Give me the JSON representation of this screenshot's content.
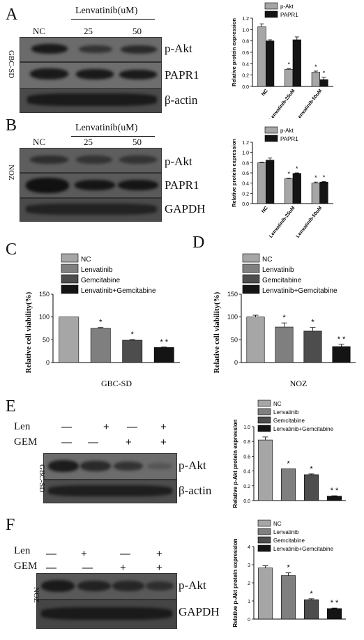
{
  "panels": {
    "A": {
      "letter": "A",
      "treatment_header": "Lenvatinib(uM)",
      "lanes": [
        "NC",
        "25",
        "50"
      ],
      "cell_line": "GBC-SD",
      "proteins": [
        "p-Akt",
        "PAPR1",
        "β-actin"
      ]
    },
    "B": {
      "letter": "B",
      "treatment_header": "Lenvatinib(uM)",
      "lanes": [
        "NC",
        "25",
        "50"
      ],
      "cell_line": "NOZ",
      "proteins": [
        "p-Akt",
        "PAPR1",
        "GAPDH"
      ]
    },
    "C": {
      "letter": "C",
      "cell_line": "GBC-SD"
    },
    "D": {
      "letter": "D",
      "cell_line": "NOZ"
    },
    "E": {
      "letter": "E",
      "row_labels": [
        "Len",
        "GEM"
      ],
      "len_signs": [
        "—",
        "+",
        "—",
        "+"
      ],
      "gem_signs": [
        "—",
        "—",
        "+",
        "+"
      ],
      "cell_line": "GBC-SD",
      "proteins": [
        "p-Akt",
        "β-actin"
      ]
    },
    "F": {
      "letter": "F",
      "row_labels": [
        "Len",
        "GEM"
      ],
      "len_signs": [
        "—",
        "+",
        "—",
        "+"
      ],
      "gem_signs": [
        "—",
        "—",
        "+",
        "+"
      ],
      "cell_line": "NOZ",
      "proteins": [
        "p-Akt",
        "GAPDH"
      ]
    }
  },
  "colors": {
    "light_gray": "#a6a6a6",
    "mid_gray": "#7f7f7f",
    "dark_gray": "#4d4d4d",
    "black": "#141414"
  },
  "chart_data": [
    {
      "id": "A",
      "type": "bar",
      "ylabel": "Relative protein expression",
      "categories": [
        "NC",
        "Lenvatinib-25uM",
        "Lenvatinib-50uM"
      ],
      "series": [
        {
          "name": "p-Akt",
          "values": [
            1.05,
            0.3,
            0.25
          ],
          "errors": [
            0.05,
            0.01,
            0.02
          ],
          "sig": [
            "",
            "*",
            "*"
          ],
          "color": "#a6a6a6"
        },
        {
          "name": "PAPR1",
          "values": [
            0.8,
            0.82,
            0.12
          ],
          "errors": [
            0.02,
            0.05,
            0.04
          ],
          "sig": [
            "",
            "",
            "*"
          ],
          "color": "#141414"
        }
      ],
      "ylim": [
        0,
        1.2
      ],
      "yticks": [
        0.0,
        0.2,
        0.4,
        0.6,
        0.8,
        1.0,
        1.2
      ],
      "legend": "top-left"
    },
    {
      "id": "B",
      "type": "bar",
      "ylabel": "Relative protein expression",
      "categories": [
        "NC",
        "Lenvatinib-25uM",
        "Lenvatinib-50uM"
      ],
      "series": [
        {
          "name": "p-Akt",
          "values": [
            0.8,
            0.49,
            0.4
          ],
          "errors": [
            0.01,
            0.01,
            0.02
          ],
          "sig": [
            "",
            "*",
            "*"
          ],
          "color": "#a6a6a6"
        },
        {
          "name": "PAPR1",
          "values": [
            0.85,
            0.59,
            0.42
          ],
          "errors": [
            0.04,
            0.01,
            0.01
          ],
          "sig": [
            "",
            "*",
            "*"
          ],
          "color": "#141414"
        }
      ],
      "ylim": [
        0,
        1.2
      ],
      "yticks": [
        0.0,
        0.2,
        0.4,
        0.6,
        0.8,
        1.0,
        1.2
      ],
      "legend": "top-left"
    },
    {
      "id": "C",
      "type": "bar",
      "ylabel": "Relative cell viability(%)",
      "xlabel": "GBC-SD",
      "categories": [
        "NC",
        "Lenvatinib",
        "Gemcitabine",
        "Lenvatinib+Gemcitabine"
      ],
      "values": [
        100,
        75,
        49,
        33
      ],
      "errors": [
        0,
        2,
        1.5,
        1
      ],
      "sig": [
        "",
        "*",
        "*",
        "* *"
      ],
      "colors": [
        "#a6a6a6",
        "#7f7f7f",
        "#4d4d4d",
        "#141414"
      ],
      "ylim": [
        0,
        150
      ],
      "yticks": [
        0,
        50,
        100,
        150
      ],
      "legend": "top-left"
    },
    {
      "id": "D",
      "type": "bar",
      "ylabel": "Relative cell viability(%)",
      "xlabel": "NOZ",
      "categories": [
        "NC",
        "Lenvatinib",
        "Gemcitabine",
        "Lenvatinib+Gemcitabine"
      ],
      "values": [
        100,
        78,
        69,
        35
      ],
      "errors": [
        4,
        9,
        8,
        5
      ],
      "sig": [
        "",
        "*",
        "*",
        "* *"
      ],
      "colors": [
        "#a6a6a6",
        "#7f7f7f",
        "#4d4d4d",
        "#141414"
      ],
      "ylim": [
        0,
        150
      ],
      "yticks": [
        0,
        50,
        100,
        150
      ],
      "legend": "top-left"
    },
    {
      "id": "E",
      "type": "bar",
      "ylabel": "Relative p-Akt protein expression",
      "categories": [
        "NC",
        "Lenvatinib",
        "Gemcitabine",
        "Lenvatinib+Gemcitabine"
      ],
      "values": [
        0.82,
        0.43,
        0.35,
        0.06
      ],
      "errors": [
        0.04,
        0,
        0.01,
        0.005
      ],
      "sig": [
        "",
        "*",
        "*",
        "* *"
      ],
      "colors": [
        "#a6a6a6",
        "#7f7f7f",
        "#4d4d4d",
        "#141414"
      ],
      "ylim": [
        0,
        1.0
      ],
      "yticks": [
        0.0,
        0.2,
        0.4,
        0.6,
        0.8,
        1.0
      ],
      "legend": "top-left"
    },
    {
      "id": "F",
      "type": "bar",
      "ylabel": "Relative p-Akt protein expression",
      "categories": [
        "NC",
        "Lenvatinib",
        "Gemcitabine",
        "Lenvatinib+Gemcitabine"
      ],
      "values": [
        2.82,
        2.4,
        1.07,
        0.58
      ],
      "errors": [
        0.12,
        0.15,
        0.05,
        0.03
      ],
      "sig": [
        "",
        "*",
        "*",
        "* *"
      ],
      "colors": [
        "#a6a6a6",
        "#7f7f7f",
        "#4d4d4d",
        "#141414"
      ],
      "ylim": [
        0,
        4
      ],
      "yticks": [
        0,
        1,
        2,
        3,
        4
      ],
      "legend": "top-left"
    }
  ]
}
